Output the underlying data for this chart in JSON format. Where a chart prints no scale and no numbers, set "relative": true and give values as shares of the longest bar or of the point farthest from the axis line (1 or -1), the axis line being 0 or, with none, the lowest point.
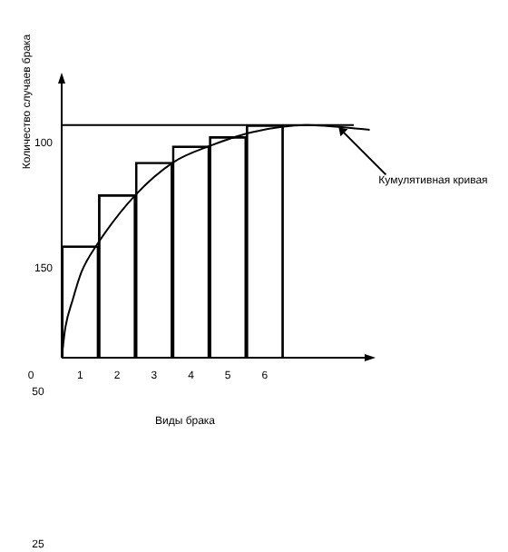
{
  "chart_data": {
    "type": "bar",
    "relative": true,
    "xlabel": "Виды брака",
    "ylabel": "Количество случаев брака",
    "xlim": [
      0,
      8.4
    ],
    "xticks": [
      {
        "value": 0.5,
        "label": "1"
      },
      {
        "value": 1.5,
        "label": "2"
      },
      {
        "value": 2.5,
        "label": "3"
      },
      {
        "value": 3.5,
        "label": "4"
      },
      {
        "value": 4.5,
        "label": "5"
      },
      {
        "value": 5.5,
        "label": "6"
      }
    ],
    "series": [
      {
        "color": "#000000",
        "x": [
          0.5,
          1.5,
          2.5,
          3.5,
          4.5,
          5.5
        ],
        "values": [
          0.48,
          0.7,
          0.84,
          0.91,
          0.95,
          1.0
        ]
      },
      {
        "type": "line",
        "color": "#000000",
        "x": [
          0,
          0.1,
          0.3,
          0.54,
          0.93,
          2,
          3.02,
          4,
          5.17,
          6.63,
          8.34
        ],
        "values": [
          0,
          0.13,
          0.25,
          0.37,
          0.48,
          0.7,
          0.84,
          0.91,
          0.97,
          1.0,
          0.98
        ]
      }
    ],
    "ref_lines": [
      {
        "axis": "y",
        "value": 1.0,
        "color": "#000000"
      }
    ],
    "annotations": [
      {
        "text": "Кумулятивная кривая",
        "x": 7.5,
        "y": 0.99
      },
      "100",
      "150",
      "0",
      "50",
      "25"
    ],
    "legend": false,
    "marker": "none",
    "line_style": "solid"
  }
}
